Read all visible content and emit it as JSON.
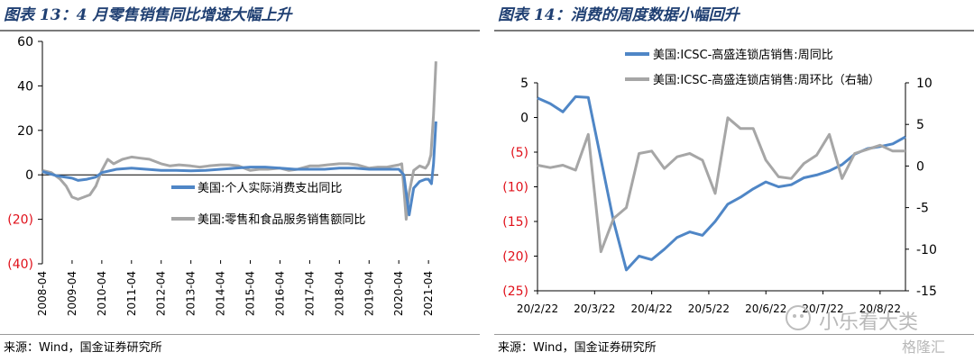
{
  "left": {
    "title": "图表 13：4 月零售销售同比增速大幅上升",
    "source": "来源：Wind，国金证券研究所",
    "chart_data": {
      "type": "line",
      "yticks": [
        "60",
        "40",
        "20",
        "0",
        "(20)",
        "(40)"
      ],
      "ylim": [
        -40,
        60
      ],
      "xticks": [
        "2008-04",
        "2009-04",
        "2010-04",
        "2011-04",
        "2012-04",
        "2013-04",
        "2014-04",
        "2015-04",
        "2016-04",
        "2017-04",
        "2018-04",
        "2019-04",
        "2020-04",
        "2021-04"
      ],
      "series": [
        {
          "name": "美国:个人实际消费支出同比",
          "color": "#4f86c6",
          "x": [
            2008.0,
            2008.5,
            2009.0,
            2009.2,
            2009.5,
            2009.8,
            2010.0,
            2010.5,
            2011.0,
            2011.5,
            2012.0,
            2012.5,
            2013.0,
            2013.5,
            2014.0,
            2014.5,
            2015.0,
            2015.5,
            2016.0,
            2016.5,
            2017.0,
            2017.5,
            2018.0,
            2018.5,
            2019.0,
            2019.5,
            2020.0,
            2020.17,
            2020.25,
            2020.35,
            2020.5,
            2020.7,
            2020.9,
            2021.0,
            2021.1,
            2021.17,
            2021.25
          ],
          "y": [
            1.5,
            -0.5,
            -1.5,
            -2.5,
            -2,
            -1,
            1,
            2.5,
            3,
            2.5,
            2,
            2,
            1.8,
            2,
            2.5,
            3,
            3.5,
            3.5,
            3,
            2.5,
            2.5,
            2.5,
            3,
            3,
            2.5,
            2.5,
            2.5,
            0,
            -8,
            -18,
            -6,
            -3,
            -2,
            -2,
            -4,
            5,
            24
          ]
        },
        {
          "name": "美国:零售和食品服务销售额同比",
          "color": "#a6a6a6",
          "x": [
            2008.0,
            2008.3,
            2008.6,
            2008.8,
            2009.0,
            2009.2,
            2009.4,
            2009.6,
            2009.8,
            2010.0,
            2010.2,
            2010.4,
            2010.7,
            2011.0,
            2011.3,
            2011.6,
            2012.0,
            2012.3,
            2012.6,
            2013.0,
            2013.3,
            2013.6,
            2014.0,
            2014.3,
            2014.6,
            2015.0,
            2015.3,
            2015.6,
            2016.0,
            2016.3,
            2016.6,
            2017.0,
            2017.3,
            2017.6,
            2018.0,
            2018.3,
            2018.6,
            2019.0,
            2019.3,
            2019.6,
            2020.0,
            2020.1,
            2020.17,
            2020.25,
            2020.35,
            2020.5,
            2020.7,
            2020.9,
            2021.0,
            2021.08,
            2021.17,
            2021.25
          ],
          "y": [
            2,
            1,
            -2,
            -5,
            -10,
            -11,
            -10,
            -9,
            -5,
            2,
            7,
            5,
            7,
            8,
            7.5,
            7,
            5,
            4,
            4.5,
            4,
            3.5,
            4,
            4.5,
            4.5,
            4,
            2,
            2.5,
            2.5,
            3,
            2,
            2.5,
            4,
            4,
            4.5,
            5,
            5,
            4.5,
            3,
            3.5,
            3.5,
            4.5,
            5,
            -6,
            -20,
            -8,
            2,
            4,
            3,
            5,
            9,
            27,
            51
          ]
        }
      ]
    }
  },
  "right": {
    "title": "图表 14：消费的周度数据小幅回升",
    "source": "来源：Wind，国金证券研究所",
    "chart_data": {
      "type": "line",
      "yticks_left": [
        "5",
        "0",
        "(5)",
        "(10)",
        "(15)",
        "(20)",
        "(25)"
      ],
      "ylim_left": [
        -25,
        5
      ],
      "yticks_right": [
        "10",
        "5",
        "0",
        "-5",
        "-10",
        "-15"
      ],
      "ylim_right": [
        -15,
        10
      ],
      "xticks": [
        "20/2/22",
        "20/3/22",
        "20/4/22",
        "20/5/22",
        "20/6/22",
        "20/7/22",
        "20/8/22"
      ],
      "series": [
        {
          "name": "美国:ICSC-高盛连锁店销售:周同比",
          "axis": "left",
          "color": "#4f86c6",
          "x": [
            0,
            1,
            2,
            3,
            4,
            5,
            6,
            7,
            8,
            9,
            10,
            11,
            12,
            13,
            14,
            15,
            16,
            17,
            18,
            19,
            20,
            21,
            22,
            23,
            24,
            25,
            26,
            27,
            28,
            29
          ],
          "y": [
            2.8,
            2,
            0.8,
            3,
            2.9,
            -6,
            -15,
            -22,
            -20,
            -20.5,
            -19,
            -17.3,
            -16.5,
            -17,
            -15,
            -12.5,
            -11.5,
            -10.3,
            -9.3,
            -10,
            -9.7,
            -8.7,
            -8.3,
            -7.7,
            -6.8,
            -5.3,
            -4.5,
            -4.2,
            -3.8,
            -2.8
          ],
          "y_is_left_axis": true
        },
        {
          "name": "美国:ICSC-高盛连锁店销售:周环比（右轴）",
          "axis": "right",
          "color": "#a6a6a6",
          "x": [
            0,
            1,
            2,
            3,
            4,
            5,
            6,
            7,
            8,
            9,
            10,
            11,
            12,
            13,
            14,
            15,
            16,
            17,
            18,
            19,
            20,
            21,
            22,
            23,
            24,
            25,
            26,
            27,
            28,
            29
          ],
          "y": [
            0.1,
            -0.2,
            0.1,
            -0.5,
            3.8,
            -10.3,
            -6.3,
            -5,
            1.5,
            1.8,
            -0.3,
            1.1,
            1.5,
            0.7,
            -3.3,
            5.8,
            4.5,
            4.5,
            0.7,
            -1.3,
            -1.5,
            0.3,
            1.3,
            3.8,
            -1.5,
            1.5,
            2,
            2.5,
            1.8,
            1.8
          ]
        }
      ]
    }
  },
  "watermark": {
    "text": "小乐看大类",
    "brand": "格隆汇"
  }
}
